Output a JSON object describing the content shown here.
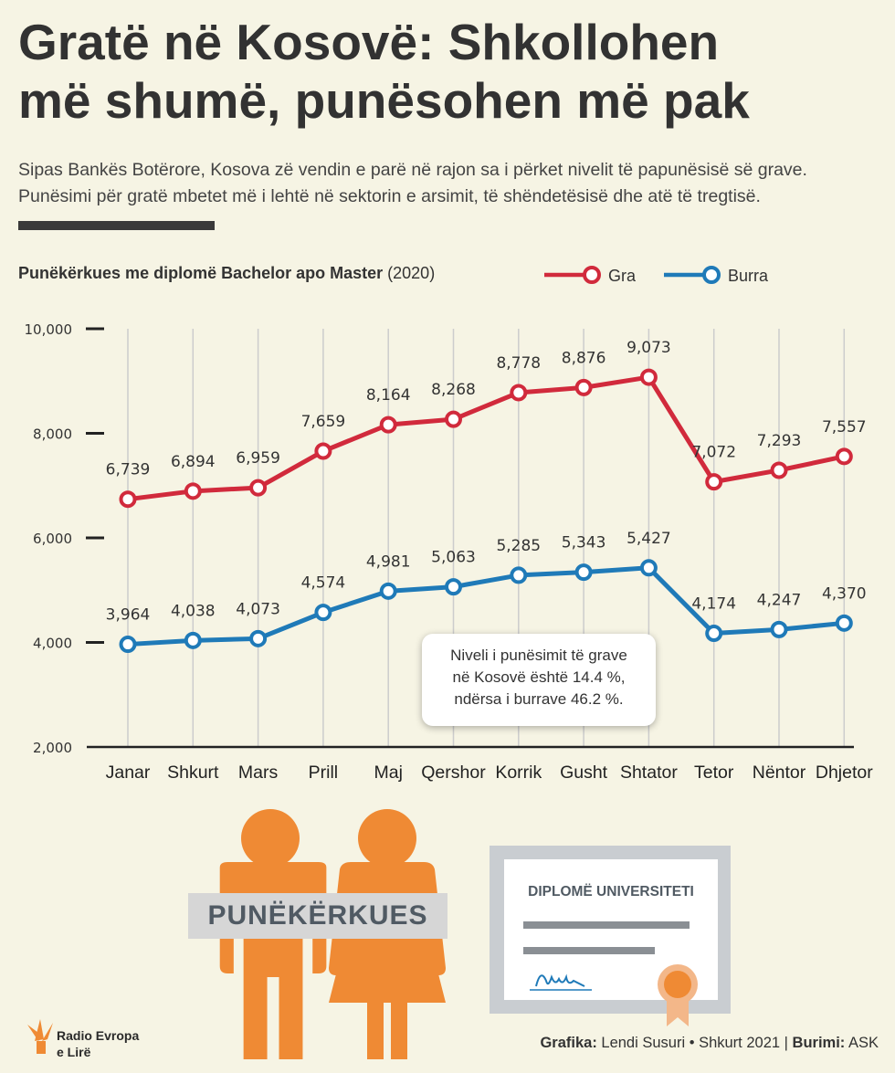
{
  "title_line1": "Gratë në Kosovë: Shkollohen",
  "title_line2": "më shumë, punësohen më pak",
  "subtitle_line1": "Sipas Bankës Botërore, Kosova zë vendin e parë në rajon sa i përket nivelit të papunësisë së grave.",
  "subtitle_line2": "Punësimi për gratë mbetet më i lehtë në sektorin e arsimit, të shëndetësisë dhe atë të tregtisë.",
  "chart_heading_bold": "Punëkërkues me diplomë Bachelor apo Master",
  "chart_heading_year": "(2020)",
  "colors": {
    "women": "#d12a3c",
    "men": "#1f7ab8",
    "orange": "#ef8a34",
    "axis": "#222222",
    "grid": "#cccccc"
  },
  "chart_data": {
    "type": "line",
    "title": "Punëkërkues me diplomë Bachelor apo Master (2020)",
    "xlabel": "",
    "ylabel": "",
    "ylim": [
      2000,
      10000
    ],
    "yticks": [
      2000,
      4000,
      6000,
      8000,
      10000
    ],
    "ytick_labels": [
      "2,000",
      "4,000",
      "6,000",
      "8,000",
      "10,000"
    ],
    "categories": [
      "Janar",
      "Shkurt",
      "Mars",
      "Prill",
      "Maj",
      "Qershor",
      "Korrik",
      "Gusht",
      "Shtator",
      "Tetor",
      "Nëntor",
      "Dhjetor"
    ],
    "series": [
      {
        "name": "Gra",
        "values": [
          6739,
          6894,
          6959,
          7659,
          8164,
          8268,
          8778,
          8876,
          9073,
          7072,
          7293,
          7557
        ],
        "labels": [
          "6,739",
          "6,894",
          "6,959",
          "7,659",
          "8,164",
          "8,268",
          "8,778",
          "8,876",
          "9,073",
          "7,072",
          "7,293",
          "7,557"
        ]
      },
      {
        "name": "Burra",
        "values": [
          3964,
          4038,
          4073,
          4574,
          4981,
          5063,
          5285,
          5343,
          5427,
          4174,
          4247,
          4370
        ],
        "labels": [
          "3,964",
          "4,038",
          "4,073",
          "4,574",
          "4,981",
          "5,063",
          "5,285",
          "5,343",
          "5,427",
          "4,174",
          "4,247",
          "4,370"
        ]
      }
    ],
    "legend_position": "top-right",
    "grid": "vertical"
  },
  "callout": {
    "line1": "Niveli i punësimit të grave",
    "line2": "në Kosovë është 14.4 %,",
    "line3": "ndërsa i burrave 46.2 %."
  },
  "illustration": {
    "people_label": "PUNËKËRKUES",
    "diploma_title": "DIPLOMË UNIVERSITETI"
  },
  "brand": {
    "line1": "Radio Evropa",
    "line2": "e Lirë"
  },
  "footer": {
    "graphics_label": "Grafika:",
    "graphics_value": "Lendi Susuri • Shkurt 2021 |",
    "source_label": "Burimi:",
    "source_value": "ASK"
  }
}
